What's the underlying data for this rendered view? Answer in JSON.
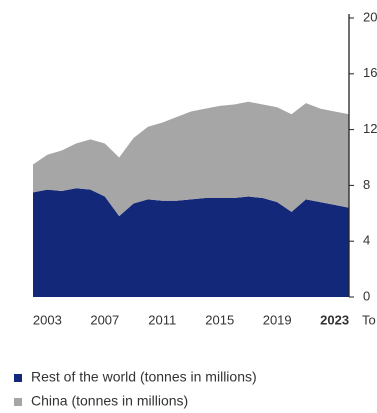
{
  "chart_data": {
    "type": "stacked_area",
    "x": [
      2002,
      2003,
      2004,
      2005,
      2006,
      2007,
      2008,
      2009,
      2010,
      2011,
      2012,
      2013,
      2014,
      2015,
      2016,
      2017,
      2018,
      2019,
      2020,
      2021,
      2022,
      2023,
      2024
    ],
    "series": [
      {
        "name": "Rest of the world (tonnes in millions)",
        "color": "#14287a",
        "values": [
          7.5,
          7.7,
          7.6,
          7.8,
          7.7,
          7.2,
          5.8,
          6.7,
          7.0,
          6.9,
          6.9,
          7.0,
          7.1,
          7.1,
          7.1,
          7.2,
          7.1,
          6.8,
          6.1,
          7.0,
          6.8,
          6.6,
          6.4
        ]
      },
      {
        "name": "China (tonnes in millions)",
        "color": "#a6a6a6",
        "values": [
          2.0,
          2.5,
          2.9,
          3.2,
          3.6,
          3.8,
          4.2,
          4.7,
          5.2,
          5.6,
          6.0,
          6.3,
          6.4,
          6.6,
          6.7,
          6.8,
          6.7,
          6.8,
          7.0,
          6.9,
          6.7,
          6.7,
          6.7
        ]
      }
    ],
    "xlim": [
      2002,
      2024
    ],
    "xticks": [
      2003,
      2007,
      2011,
      2015,
      2019,
      2023
    ],
    "xtick_bold": [
      2023
    ],
    "ylim": [
      0,
      20
    ],
    "yticks": [
      0,
      4,
      8,
      12,
      16,
      20
    ],
    "y_axis_label": "To",
    "legend": "bottom-left"
  }
}
